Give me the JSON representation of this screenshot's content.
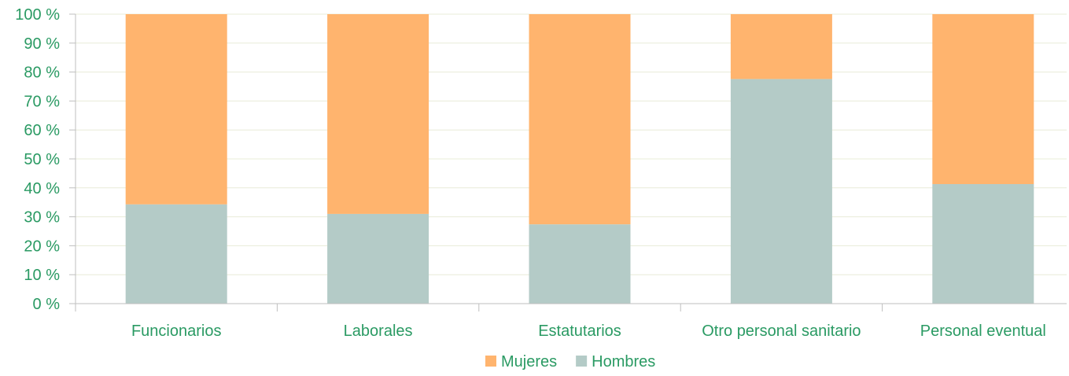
{
  "chart_data": {
    "type": "bar",
    "stacked": true,
    "percent_stacked": true,
    "categories": [
      "Funcionarios",
      "Laborales",
      "Estatutarios",
      "Otro personal sanitario",
      "Personal eventual"
    ],
    "series": [
      {
        "name": "Hombres",
        "values": [
          34.3,
          31.0,
          27.4,
          77.6,
          41.3
        ],
        "color": "#b4cbc7"
      },
      {
        "name": "Mujeres",
        "values": [
          65.7,
          69.0,
          72.6,
          22.4,
          58.7
        ],
        "color": "#ffb46e"
      }
    ],
    "ylim": [
      0,
      100
    ],
    "y_ticks": [
      "0 %",
      "10 %",
      "20 %",
      "30 %",
      "40 %",
      "50 %",
      "60 %",
      "70 %",
      "80 %",
      "90 %",
      "100 %"
    ],
    "legend": {
      "position": "bottom",
      "entries": [
        "Mujeres",
        "Hombres"
      ]
    },
    "grid": true,
    "title": "",
    "xlabel": "",
    "ylabel": ""
  },
  "colors": {
    "text": "#2a9a63",
    "grid": "#e8ecd8",
    "axis": "#bfbfbf"
  }
}
